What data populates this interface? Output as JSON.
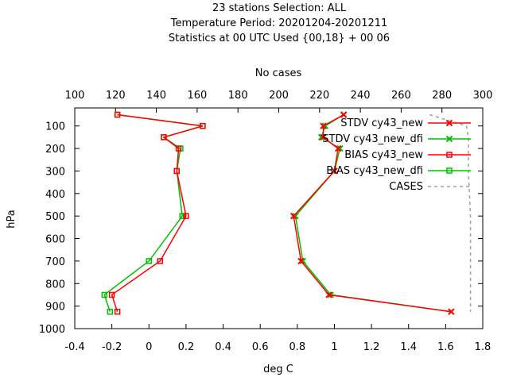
{
  "chart_data": {
    "type": "line",
    "title_lines": [
      "23 stations Selection: ALL",
      "Temperature  Period: 20201204-20201211",
      "Statistics at 00 UTC  Used {00,18} + 00 06"
    ],
    "xlabel": "deg C",
    "x2label": "No cases",
    "ylabel": "hPa",
    "xlim": [
      -0.4,
      1.8
    ],
    "x2lim": [
      100,
      300
    ],
    "ylim": [
      1000,
      20
    ],
    "y_reversed": true,
    "grid": false,
    "legend_position": "top-right",
    "x_ticks": [
      "-0.4",
      "-0.2",
      "0",
      "0.2",
      "0.4",
      "0.6",
      "0.8",
      "1",
      "1.2",
      "1.4",
      "1.6",
      "1.8"
    ],
    "x2_ticks": [
      "100",
      "120",
      "140",
      "160",
      "180",
      "200",
      "220",
      "240",
      "260",
      "280",
      "300"
    ],
    "y_ticks": [
      "100",
      "200",
      "300",
      "400",
      "500",
      "600",
      "700",
      "800",
      "900",
      "1000"
    ],
    "series": [
      {
        "name": "STDV cy43_new",
        "color": "#ff0000",
        "marker": "x",
        "axis": "x",
        "points": [
          [
            1.05,
            50
          ],
          [
            0.94,
            100
          ],
          [
            0.94,
            150
          ],
          [
            1.02,
            200
          ],
          [
            1.0,
            300
          ],
          [
            0.78,
            500
          ],
          [
            0.82,
            700
          ],
          [
            0.97,
            850
          ],
          [
            1.63,
            925
          ]
        ]
      },
      {
        "name": "STDV cy43_new_dfi",
        "color": "#00c000",
        "marker": "x",
        "axis": "x",
        "points": [
          [
            1.05,
            50
          ],
          [
            0.95,
            100
          ],
          [
            0.93,
            150
          ],
          [
            1.03,
            200
          ],
          [
            1.0,
            300
          ],
          [
            0.79,
            500
          ],
          [
            0.83,
            700
          ],
          [
            0.98,
            850
          ],
          [
            1.63,
            925
          ]
        ]
      },
      {
        "name": "BIAS cy43_new",
        "color": "#ff0000",
        "marker": "square",
        "axis": "x",
        "points": [
          [
            -0.17,
            50
          ],
          [
            0.29,
            100
          ],
          [
            0.08,
            150
          ],
          [
            0.16,
            200
          ],
          [
            0.15,
            300
          ],
          [
            0.2,
            500
          ],
          [
            0.06,
            700
          ],
          [
            -0.2,
            850
          ],
          [
            -0.17,
            925
          ]
        ]
      },
      {
        "name": "BIAS cy43_new_dfi",
        "color": "#00c000",
        "marker": "square",
        "axis": "x",
        "points": [
          [
            -0.17,
            50
          ],
          [
            0.29,
            100
          ],
          [
            0.08,
            150
          ],
          [
            0.17,
            200
          ],
          [
            0.15,
            300
          ],
          [
            0.18,
            500
          ],
          [
            0.0,
            700
          ],
          [
            -0.24,
            850
          ],
          [
            -0.21,
            925
          ]
        ]
      },
      {
        "name": "CASES",
        "color": "#a0a0a0",
        "dashed": true,
        "axis": "x2",
        "points": [
          [
            274,
            50
          ],
          [
            292,
            100
          ],
          [
            293,
            150
          ],
          [
            293,
            200
          ],
          [
            293,
            300
          ],
          [
            294,
            500
          ],
          [
            294,
            700
          ],
          [
            294,
            850
          ],
          [
            294,
            925
          ]
        ]
      }
    ]
  }
}
